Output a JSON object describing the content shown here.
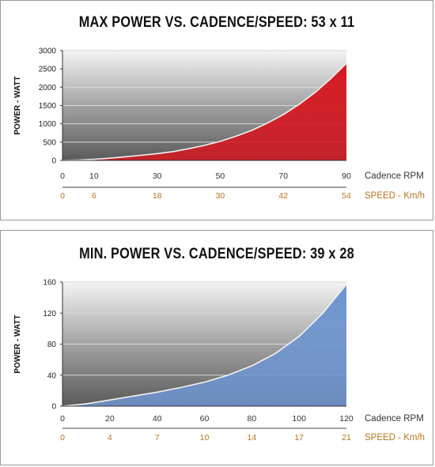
{
  "chart_data": [
    {
      "type": "area",
      "title": "MAX POWER VS. CADENCE/SPEED: 53 x 11",
      "ylabel": "POWER - WATT",
      "ylim": [
        0,
        3000
      ],
      "yticks": [
        0,
        500,
        1000,
        1500,
        2000,
        2500,
        3000
      ],
      "xlim": [
        0,
        90
      ],
      "xticks": [
        0,
        10,
        30,
        50,
        70,
        90
      ],
      "x_axis_label": "Cadence RPM",
      "speed_ticks": [
        0,
        6,
        18,
        30,
        42,
        54
      ],
      "speed_axis_label": "SPEED - Km/h",
      "grid": true,
      "fill_color": "#d41820",
      "series": [
        {
          "x": [
            0,
            5,
            10,
            15,
            20,
            25,
            30,
            35,
            40,
            45,
            50,
            55,
            60,
            65,
            70,
            75,
            80,
            85,
            90
          ],
          "values": [
            0,
            10,
            30,
            60,
            100,
            140,
            185,
            240,
            320,
            410,
            520,
            660,
            820,
            1020,
            1250,
            1530,
            1850,
            2230,
            2650
          ]
        }
      ]
    },
    {
      "type": "area",
      "title": "MIN. POWER VS. CADENCE/SPEED: 39 x 28",
      "ylabel": "POWER - WATT",
      "ylim": [
        0,
        160
      ],
      "yticks": [
        0,
        40,
        80,
        120,
        160
      ],
      "xlim": [
        0,
        120
      ],
      "xticks": [
        0,
        20,
        40,
        60,
        80,
        100,
        120
      ],
      "x_axis_label": "Cadence RPM",
      "speed_ticks": [
        0,
        4,
        7,
        10,
        14,
        17,
        21
      ],
      "speed_axis_label": "SPEED - Km/h",
      "grid": true,
      "fill_color": "#6f95cf",
      "series": [
        {
          "x": [
            0,
            10,
            20,
            30,
            40,
            50,
            60,
            70,
            80,
            90,
            100,
            110,
            120
          ],
          "values": [
            0,
            3,
            8,
            13,
            18,
            24,
            31,
            40,
            52,
            68,
            90,
            120,
            157
          ]
        }
      ]
    }
  ]
}
